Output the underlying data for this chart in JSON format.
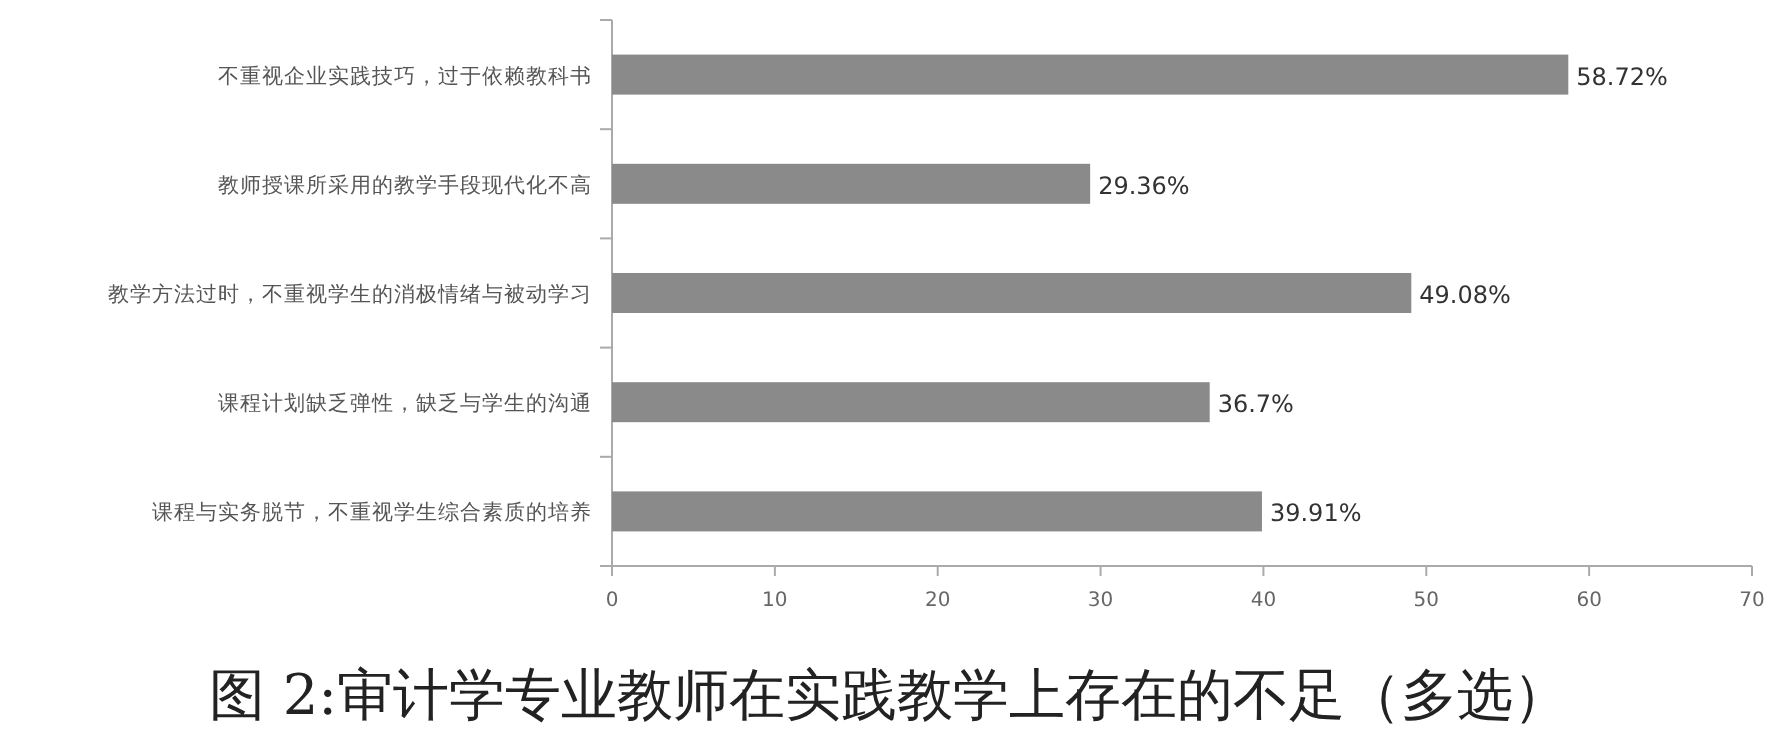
{
  "chart_data": {
    "type": "bar",
    "orientation": "horizontal",
    "title": "图 2:审计学专业教师在实践教学上存在的不足（多选）",
    "categories": [
      "不重视企业实践技巧，过于依赖教科书",
      "教师授课所采用的教学手段现代化不高",
      "教学方法过时，不重视学生的消极情绪与被动学习",
      "课程计划缺乏弹性，缺乏与学生的沟通",
      "课程与实务脱节，不重视学生综合素质的培养"
    ],
    "values": [
      58.72,
      29.36,
      49.08,
      36.7,
      39.91
    ],
    "value_labels": [
      "58.72%",
      "29.36%",
      "49.08%",
      "36.7%",
      "39.91%"
    ],
    "color": "#8a8a8a",
    "xlim": [
      0,
      70
    ],
    "xticks": [
      0,
      10,
      20,
      30,
      40,
      50,
      60,
      70
    ],
    "grid": false
  }
}
